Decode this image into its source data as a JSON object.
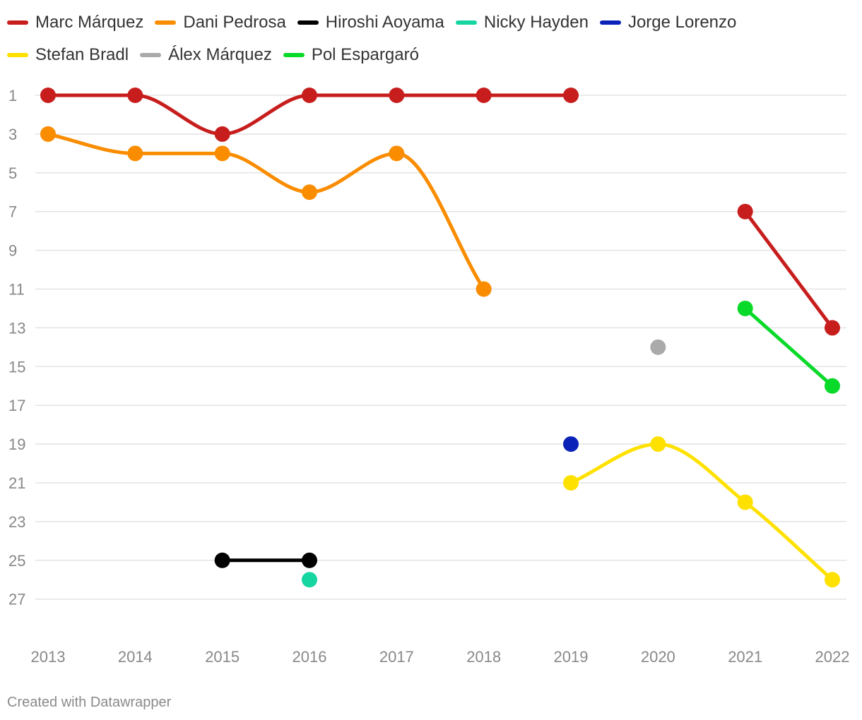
{
  "chart_data": {
    "type": "line",
    "y_reversed": true,
    "x": [
      2013,
      2014,
      2015,
      2016,
      2017,
      2018,
      2019,
      2020,
      2021,
      2022
    ],
    "x_tick_labels": [
      "2013",
      "2014",
      "2015",
      "2016",
      "2017",
      "2018",
      "2019",
      "2020",
      "2021",
      "2022"
    ],
    "y_ticks": [
      1,
      3,
      5,
      7,
      9,
      11,
      13,
      15,
      17,
      19,
      21,
      23,
      25,
      27
    ],
    "ylim": [
      1,
      29
    ],
    "grid": true,
    "legend_position": "top",
    "series": [
      {
        "name": "Marc Márquez",
        "color": "#c71e1d",
        "values": [
          1,
          1,
          3,
          1,
          1,
          1,
          1,
          null,
          7,
          13
        ]
      },
      {
        "name": "Dani Pedrosa",
        "color": "#fa8c00",
        "values": [
          3,
          4,
          4,
          6,
          4,
          11,
          null,
          null,
          null,
          null
        ]
      },
      {
        "name": "Hiroshi Aoyama",
        "color": "#000000",
        "values": [
          null,
          null,
          25,
          25,
          null,
          null,
          null,
          null,
          null,
          null
        ]
      },
      {
        "name": "Nicky Hayden",
        "color": "#15d5a1",
        "values": [
          null,
          null,
          null,
          26,
          null,
          null,
          null,
          null,
          null,
          null
        ]
      },
      {
        "name": "Jorge Lorenzo",
        "color": "#0a22b8",
        "values": [
          null,
          null,
          null,
          null,
          null,
          null,
          19,
          null,
          null,
          null
        ]
      },
      {
        "name": "Stefan Bradl",
        "color": "#ffe100",
        "values": [
          null,
          null,
          null,
          null,
          null,
          null,
          21,
          19,
          22,
          26
        ]
      },
      {
        "name": "Álex Márquez",
        "color": "#aaaaaa",
        "values": [
          null,
          null,
          null,
          null,
          null,
          null,
          null,
          14,
          null,
          null
        ]
      },
      {
        "name": "Pol Espargaró",
        "color": "#09d929",
        "values": [
          null,
          null,
          null,
          null,
          null,
          null,
          null,
          null,
          12,
          16
        ]
      }
    ]
  },
  "footer": {
    "credit": "Created with Datawrapper"
  }
}
